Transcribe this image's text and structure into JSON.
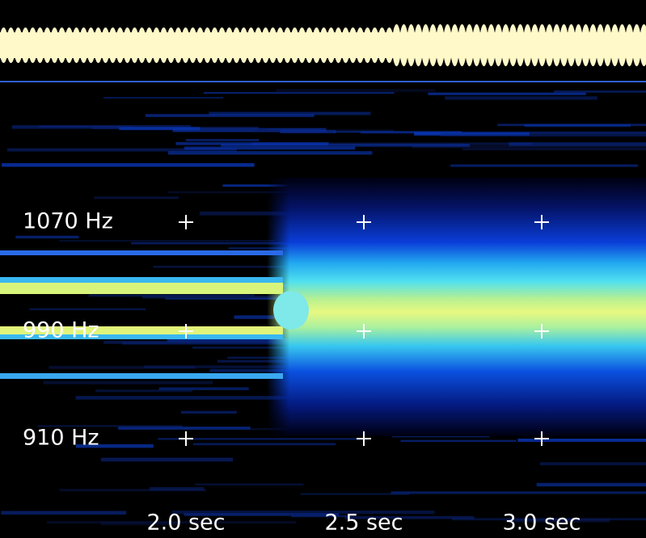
{
  "frequency_labels": [
    "1070 Hz",
    "990 Hz",
    "910 Hz"
  ],
  "time_labels": [
    "2.0 sec",
    "2.5 sec",
    "3.0 sec"
  ]
}
